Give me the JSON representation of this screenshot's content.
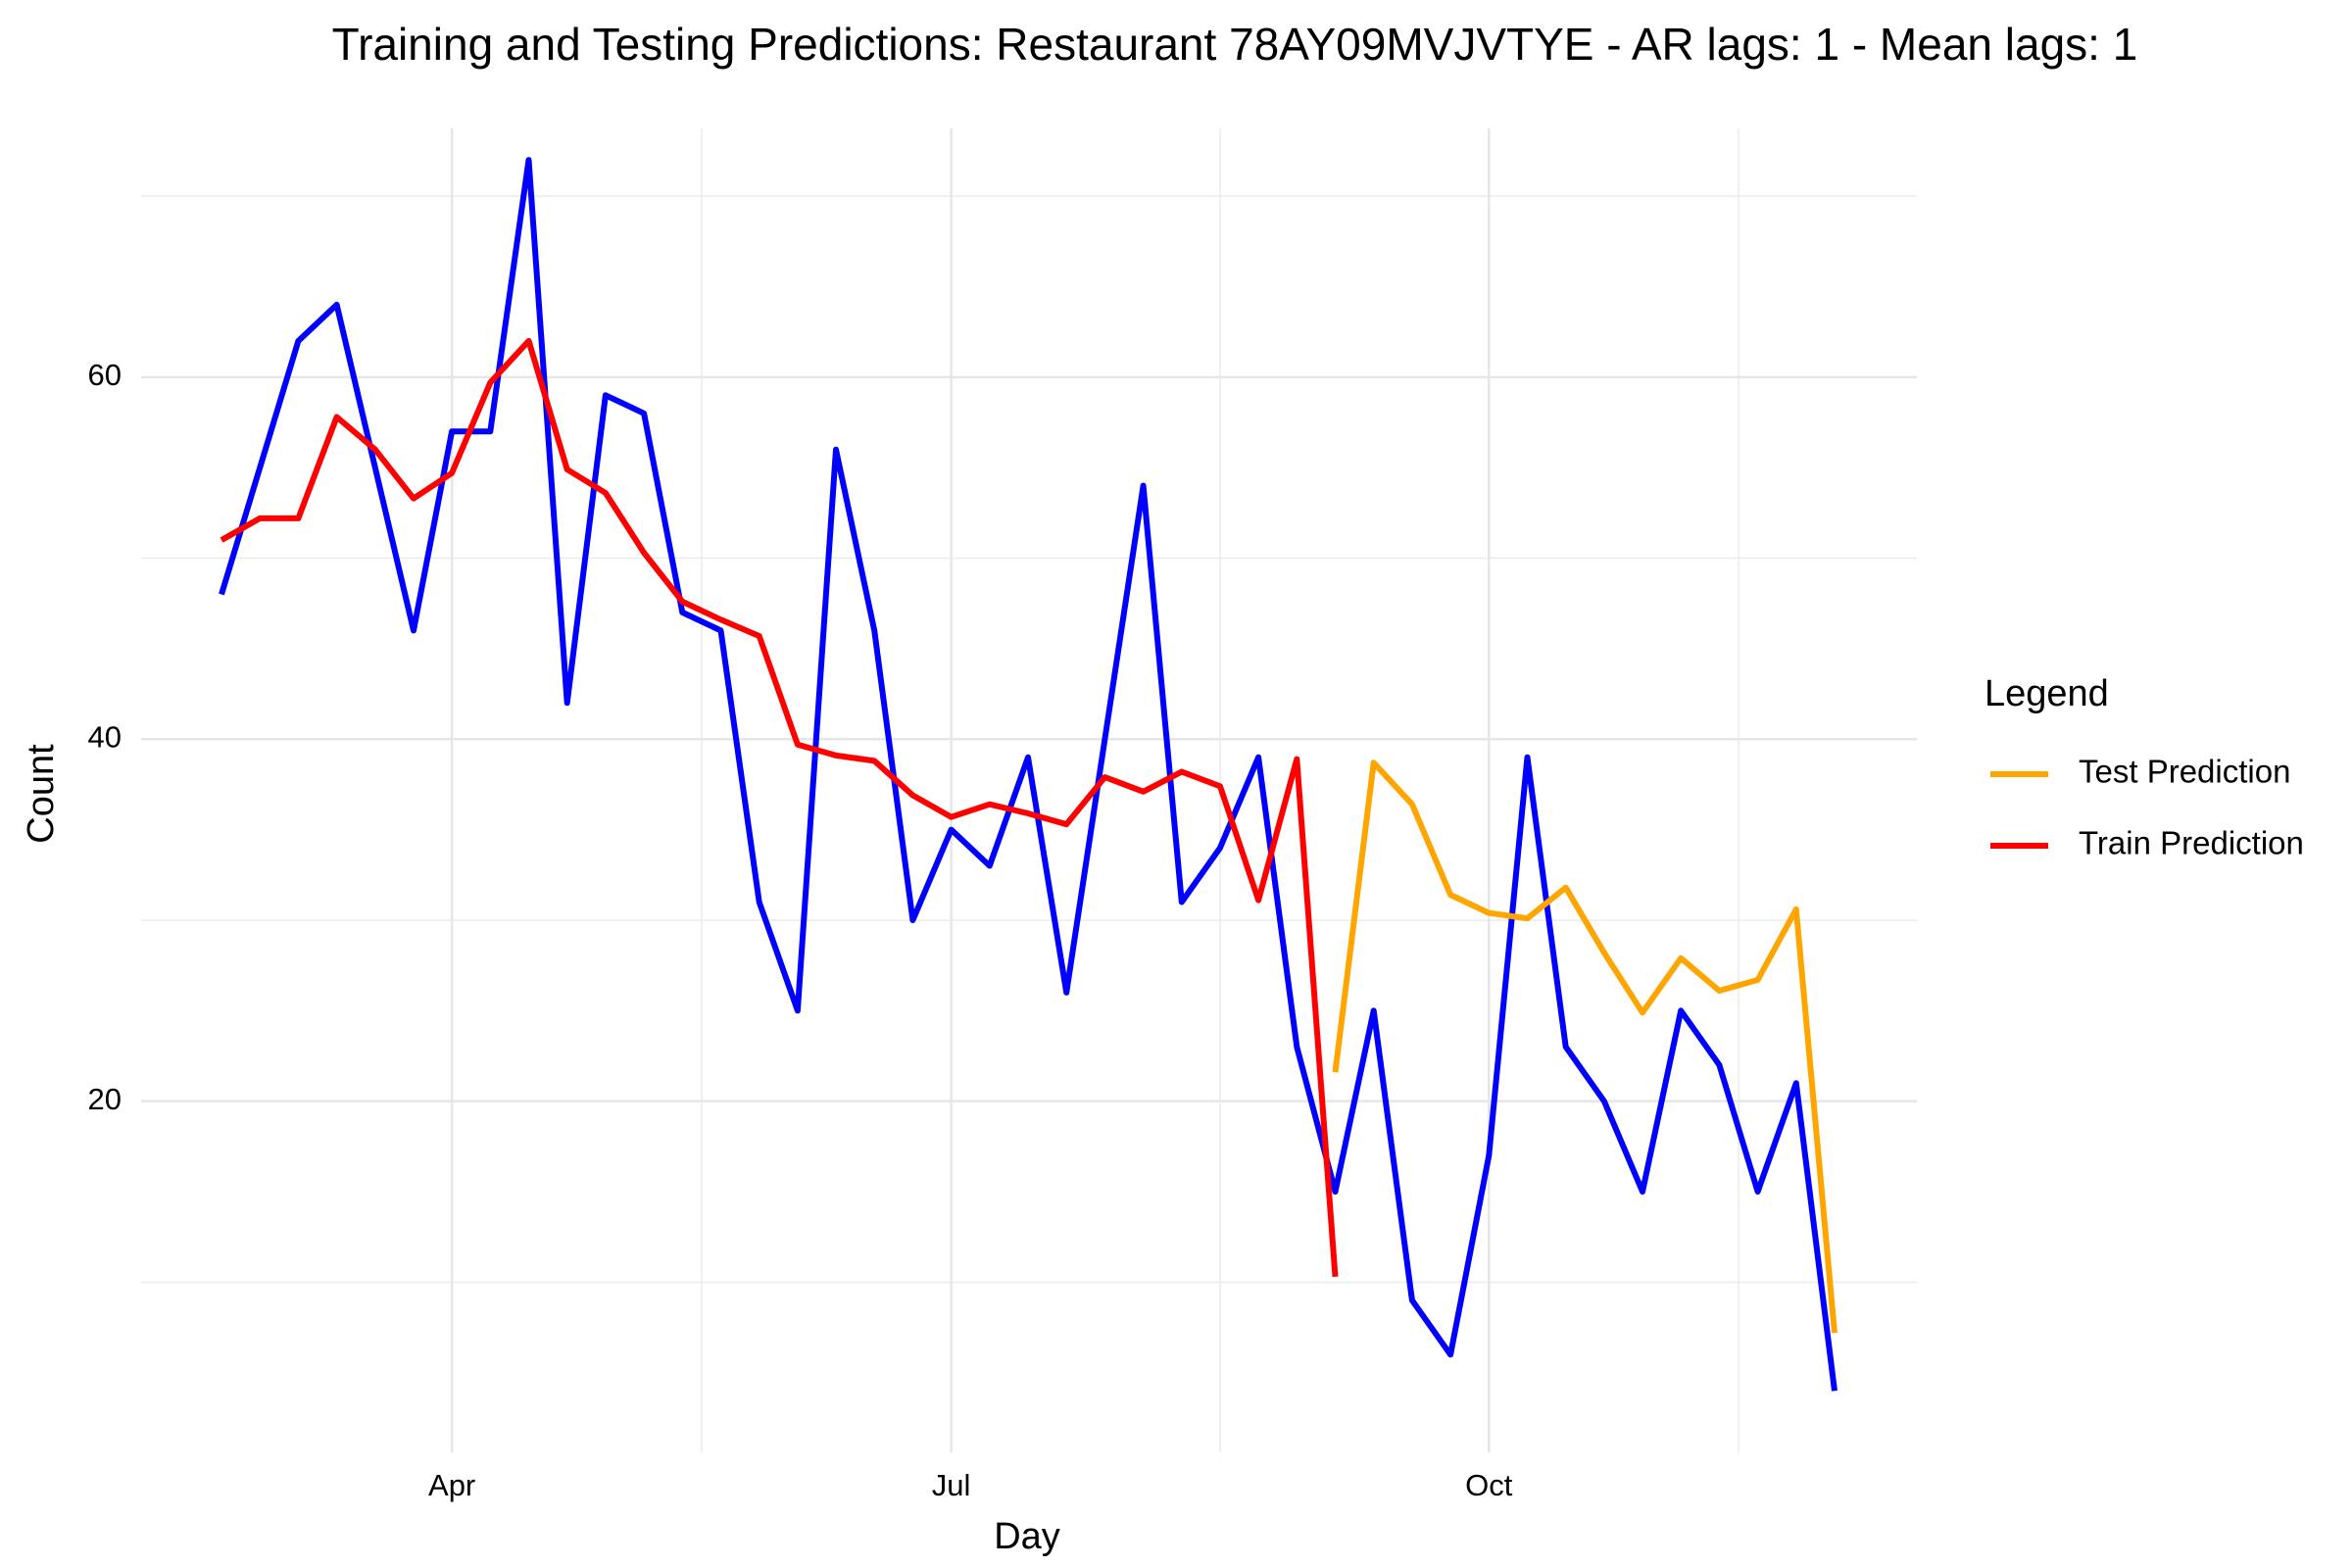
{
  "chart_data": {
    "type": "line",
    "title": "Training and Testing Predictions: Restaurant 78AY09MVJVTYE - AR lags: 1 - Mean lags: 1",
    "x_label": "Day",
    "y_label": "Count",
    "legend_title": "Legend",
    "legend_position": "right",
    "grid": true,
    "categories": [
      null,
      null,
      null,
      null,
      null,
      null,
      "Apr",
      null,
      null,
      null,
      null,
      null,
      null,
      null,
      null,
      null,
      null,
      null,
      null,
      "Jul",
      null,
      null,
      null,
      null,
      null,
      null,
      null,
      null,
      null,
      null,
      null,
      null,
      null,
      "Oct",
      null,
      null,
      null,
      null,
      null,
      null,
      null,
      null,
      null
    ],
    "ylim": [
      0.6,
      73.2
    ],
    "yticks": [
      20,
      40,
      60
    ],
    "series": [
      {
        "name": "Test Prediction",
        "color": "#ffa500",
        "values": [
          null,
          null,
          null,
          null,
          null,
          null,
          null,
          null,
          null,
          null,
          null,
          null,
          null,
          null,
          null,
          null,
          null,
          null,
          null,
          null,
          null,
          null,
          null,
          null,
          null,
          null,
          null,
          null,
          null,
          21.6,
          38.7,
          36.4,
          31.4,
          30.4,
          30.1,
          31.8,
          28.2,
          24.9,
          27.9,
          26.1,
          26.7,
          30.6,
          7.2
        ]
      },
      {
        "name": "Train Prediction",
        "color": "#ff0000",
        "values": [
          51,
          52.2,
          52.2,
          57.8,
          56,
          53.3,
          54.7,
          59.7,
          62,
          54.9,
          53.6,
          50.3,
          47.6,
          46.6,
          45.7,
          39.7,
          39.1,
          38.8,
          36.9,
          35.7,
          36.4,
          35.9,
          35.3,
          37.9,
          37.1,
          38.2,
          37.4,
          31.1,
          38.9,
          10.3,
          null,
          null,
          null,
          null,
          null,
          null,
          null,
          null,
          null,
          null,
          null,
          null,
          null
        ]
      },
      {
        "color": "#0000ff",
        "values": [
          48,
          55,
          62,
          64,
          55,
          46,
          57,
          57,
          72,
          42,
          59,
          58,
          47,
          46,
          31,
          25,
          56,
          46,
          30,
          35,
          33,
          39,
          26,
          40,
          54,
          31,
          34,
          39,
          23,
          15,
          25,
          9,
          6,
          17,
          39,
          23,
          20,
          15,
          25,
          22,
          15,
          21,
          4
        ]
      }
    ]
  }
}
